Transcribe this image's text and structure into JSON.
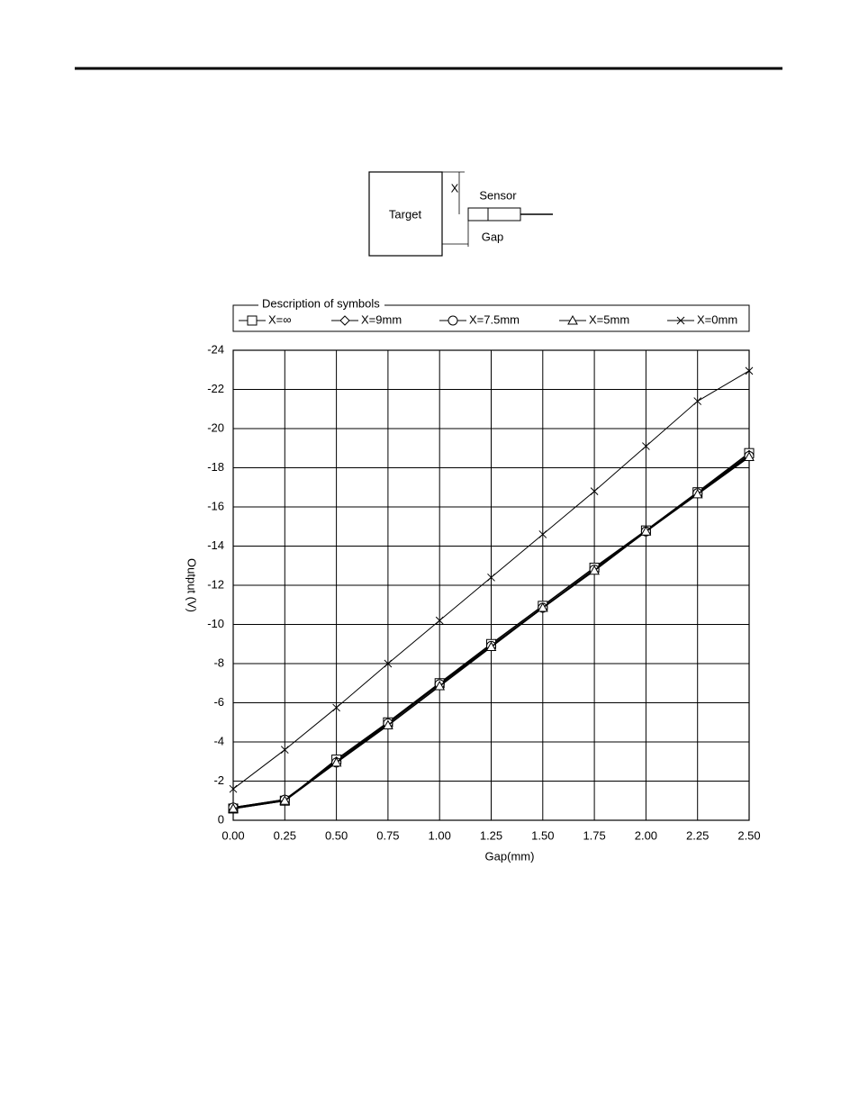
{
  "diagram": {
    "target": "Target",
    "x_label": "X",
    "sensor": "Sensor",
    "gap": "Gap"
  },
  "chart_data": {
    "type": "line",
    "x_label": "Gap(mm)",
    "y_label": "Output (V)",
    "legend_title": "Description of symbols",
    "x": [
      0,
      0.25,
      0.5,
      0.75,
      1.0,
      1.25,
      1.5,
      1.75,
      2.0,
      2.25,
      2.5
    ],
    "xlim": [
      0,
      2.5
    ],
    "xticks": [
      {
        "value": 0,
        "label": "0.00"
      },
      {
        "value": 0.25,
        "label": "0.25"
      },
      {
        "value": 0.5,
        "label": "0.50"
      },
      {
        "value": 0.75,
        "label": "0.75"
      },
      {
        "value": 1,
        "label": "1.00"
      },
      {
        "value": 1.25,
        "label": "1.25"
      },
      {
        "value": 1.5,
        "label": "1.50"
      },
      {
        "value": 1.75,
        "label": "1.75"
      },
      {
        "value": 2,
        "label": "2.00"
      },
      {
        "value": 2.25,
        "label": "2.25"
      },
      {
        "value": 2.5,
        "label": "2.50"
      }
    ],
    "ylim": [
      0,
      -24
    ],
    "yticks": [
      0,
      -2,
      -4,
      -6,
      -8,
      -10,
      -12,
      -14,
      -16,
      -18,
      -20,
      -22,
      -24
    ],
    "grid": true,
    "series": [
      {
        "name": "X=∞",
        "color": "#000000",
        "marker": "square",
        "values": [
          -0.6,
          -1.0,
          -3.1,
          -5.0,
          -7.0,
          -9.0,
          -10.95,
          -12.9,
          -14.8,
          -16.75,
          -18.75
        ]
      },
      {
        "name": "X=9mm",
        "color": "#000000",
        "marker": "diamond",
        "values": [
          -0.65,
          -1.05,
          -3.0,
          -4.95,
          -6.95,
          -8.9,
          -10.85,
          -12.8,
          -14.75,
          -16.7,
          -18.65
        ]
      },
      {
        "name": "X=7.5mm",
        "color": "#000000",
        "marker": "circle",
        "values": [
          -0.65,
          -1.05,
          -2.95,
          -4.95,
          -6.95,
          -8.9,
          -10.85,
          -12.8,
          -14.75,
          -16.7,
          -18.6
        ]
      },
      {
        "name": "X=5mm",
        "color": "#000000",
        "marker": "triangle",
        "values": [
          -0.6,
          -1.0,
          -2.95,
          -4.85,
          -6.85,
          -8.85,
          -10.85,
          -12.75,
          -14.75,
          -16.65,
          -18.55
        ]
      },
      {
        "name": "X=0mm",
        "color": "#000000",
        "marker": "cross",
        "values": [
          -1.6,
          -3.6,
          -5.75,
          -8.0,
          -10.2,
          -12.4,
          -14.6,
          -16.8,
          -19.1,
          -21.4,
          -22.95
        ]
      }
    ]
  }
}
